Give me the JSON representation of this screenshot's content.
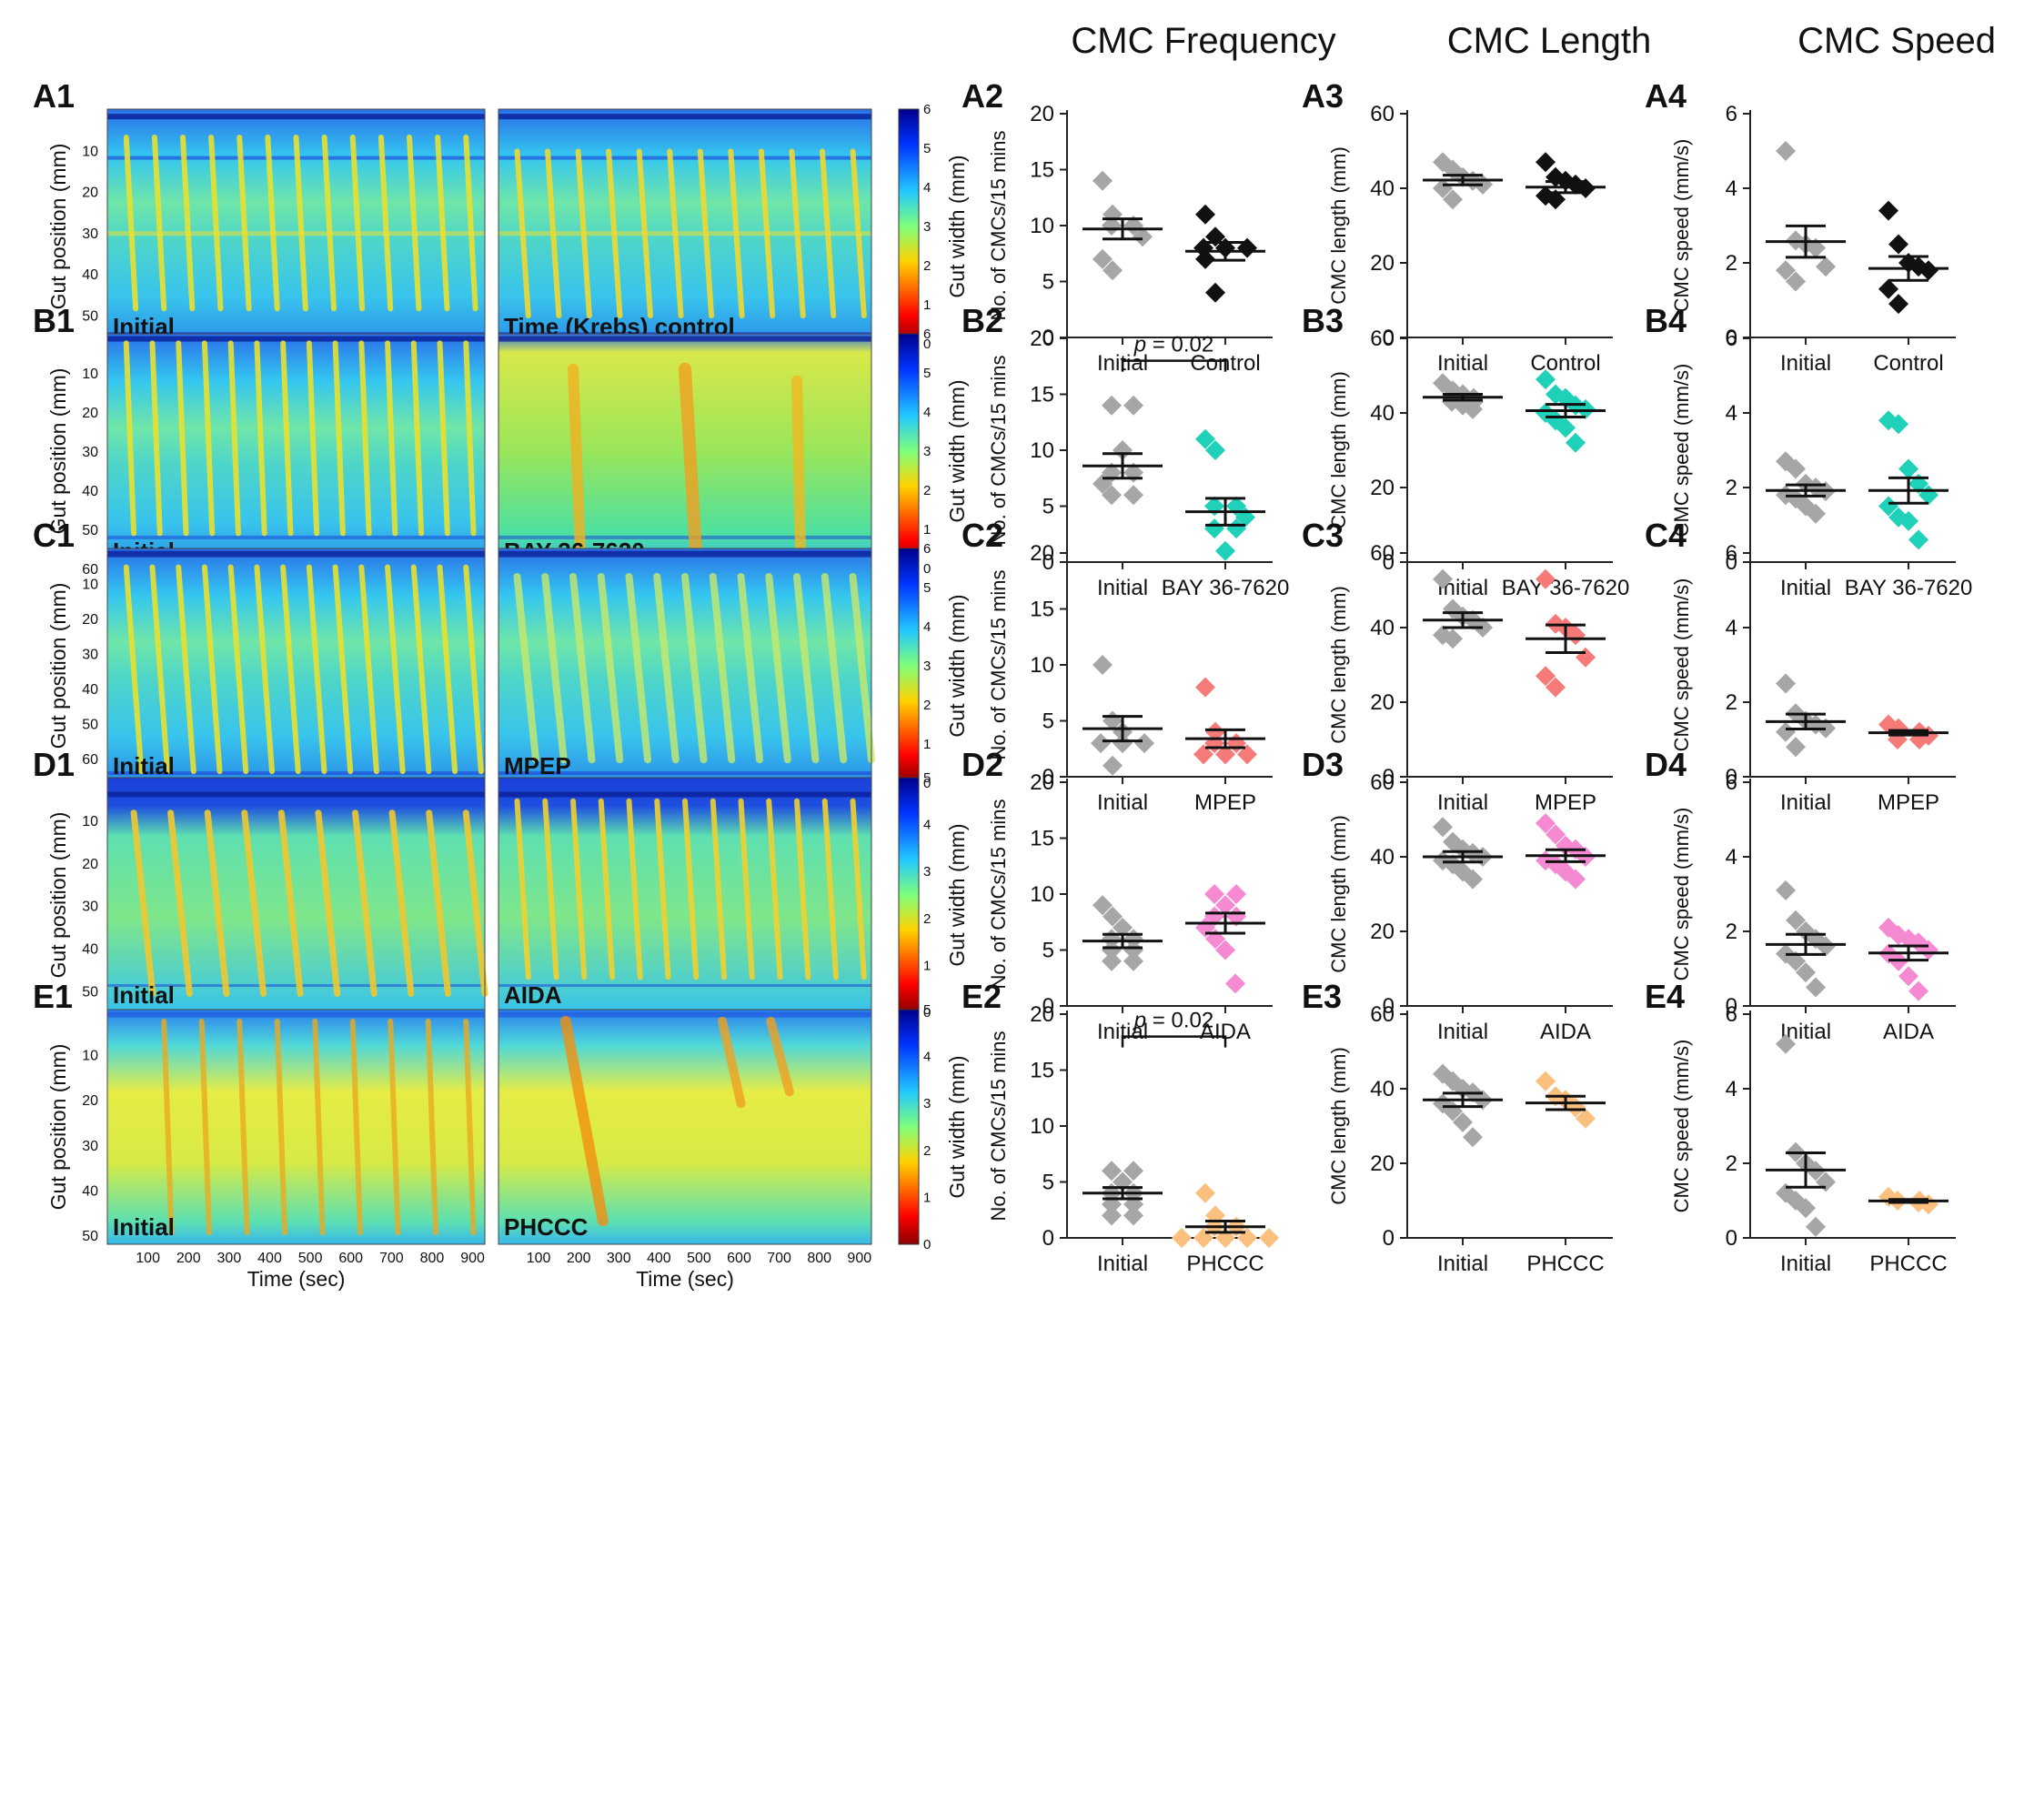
{
  "colors": {
    "initial": "#a6a6a6",
    "control": "#111111",
    "bay": "#1fd1b8",
    "mpep": "#f57a78",
    "aida": "#f589d2",
    "phccc": "#fbbf7e",
    "axis": "#222222",
    "text": "#111111"
  },
  "column_headers": [
    "CMC Frequency",
    "CMC Length",
    "CMC Speed"
  ],
  "colorbar_label": "Gut width (mm)",
  "map_xlabel": "Time (sec)",
  "map_ylabel": "Gut position (mm)",
  "rows": [
    {
      "id": "A",
      "panel_labels": [
        "A1",
        "A2",
        "A3",
        "A4"
      ],
      "map_left_label": "Initial",
      "map_right_label": "Time (Krebs) control",
      "time_ticks": [
        "100",
        "200",
        "300",
        "400",
        "500",
        "600",
        "700",
        "800",
        "900"
      ],
      "position_ticks": [
        "10",
        "20",
        "30",
        "40",
        "50"
      ],
      "position_max": 57,
      "colorbar_ticks": [
        "0",
        "1",
        "2",
        "3",
        "4",
        "5",
        "6"
      ]
    },
    {
      "id": "B",
      "panel_labels": [
        "B1",
        "B2",
        "B3",
        "B4"
      ],
      "map_left_label": "Initial",
      "map_right_label": "BAY 36-7620",
      "time_ticks": [
        "100",
        "200",
        "300",
        "400",
        "500",
        "600",
        "700",
        "800",
        "900"
      ],
      "position_ticks": [
        "10",
        "20",
        "30",
        "40",
        "50",
        "60"
      ],
      "position_max": 60,
      "colorbar_ticks": [
        "0",
        "1",
        "2",
        "3",
        "4",
        "5",
        "6"
      ]
    },
    {
      "id": "C",
      "panel_labels": [
        "C1",
        "C2",
        "C3",
        "C4"
      ],
      "map_left_label": "Initial",
      "map_right_label": "MPEP",
      "time_ticks": [
        "100",
        "200",
        "300",
        "400",
        "500",
        "600",
        "700",
        "800",
        "900"
      ],
      "position_ticks": [
        "10",
        "20",
        "30",
        "40",
        "50",
        "60"
      ],
      "position_max": 67,
      "colorbar_ticks": [
        "0",
        "1",
        "2",
        "3",
        "4",
        "5",
        "6"
      ]
    },
    {
      "id": "D",
      "panel_labels": [
        "D1",
        "D2",
        "D3",
        "D4"
      ],
      "map_left_label": "Initial",
      "map_right_label": "AIDA",
      "time_ticks": [
        "100",
        "200",
        "300",
        "400",
        "500",
        "600",
        "700",
        "800",
        "900"
      ],
      "position_ticks": [
        "10",
        "20",
        "30",
        "40",
        "50"
      ],
      "position_max": 55,
      "colorbar_ticks": [
        "0",
        "1",
        "2",
        "3",
        "4",
        "5"
      ]
    },
    {
      "id": "E",
      "panel_labels": [
        "E1",
        "E2",
        "E3",
        "E4"
      ],
      "map_left_label": "Initial",
      "map_right_label": "PHCCC",
      "time_ticks": [
        "100",
        "200",
        "300",
        "400",
        "500",
        "600",
        "700",
        "800",
        "900"
      ],
      "position_ticks": [
        "10",
        "20",
        "30",
        "40",
        "50"
      ],
      "position_max": 52,
      "colorbar_ticks": [
        "0",
        "1",
        "2",
        "3",
        "4",
        "5"
      ]
    }
  ],
  "chart_data": [
    {
      "id": "A2",
      "type": "scatter",
      "ylabel": "No. of CMCs/15 mins",
      "ylim": [
        0,
        20
      ],
      "yticks": [
        0,
        5,
        10,
        15,
        20
      ],
      "categories": [
        "Initial",
        "Control"
      ],
      "colors": [
        "initial",
        "control"
      ],
      "series": [
        {
          "name": "Initial",
          "values": [
            14,
            11,
            10,
            10,
            9,
            7,
            6
          ],
          "mean": 9.7,
          "sem": 0.9
        },
        {
          "name": "Control",
          "values": [
            11,
            9,
            8,
            8,
            8,
            7,
            4
          ],
          "mean": 7.7,
          "sem": 0.8
        }
      ]
    },
    {
      "id": "A3",
      "type": "scatter",
      "ylabel": "CMC length (mm)",
      "ylim": [
        0,
        60
      ],
      "yticks": [
        0,
        20,
        40,
        60
      ],
      "categories": [
        "Initial",
        "Control"
      ],
      "colors": [
        "initial",
        "control"
      ],
      "series": [
        {
          "name": "Initial",
          "values": [
            47,
            45,
            43,
            42,
            41,
            40,
            37
          ],
          "mean": 42.2,
          "sem": 1.3
        },
        {
          "name": "Control",
          "values": [
            47,
            43,
            42,
            41,
            40,
            38,
            37
          ],
          "mean": 40.3,
          "sem": 1.5
        }
      ]
    },
    {
      "id": "A4",
      "type": "scatter",
      "ylabel": "CMC speed (mm/s)",
      "ylim": [
        0,
        6
      ],
      "yticks": [
        0,
        2,
        4,
        6
      ],
      "categories": [
        "Initial",
        "Control"
      ],
      "colors": [
        "initial",
        "control"
      ],
      "series": [
        {
          "name": "Initial",
          "values": [
            5.0,
            2.6,
            2.5,
            2.4,
            1.9,
            1.8,
            1.5
          ],
          "mean": 2.57,
          "sem": 0.42
        },
        {
          "name": "Control",
          "values": [
            3.4,
            2.5,
            2.0,
            1.9,
            1.8,
            1.3,
            0.9
          ],
          "mean": 1.85,
          "sem": 0.32
        }
      ]
    },
    {
      "id": "B2",
      "type": "scatter",
      "ylabel": "No. of CMCs/15 mins",
      "ylim": [
        0,
        20
      ],
      "yticks": [
        0,
        5,
        10,
        15,
        20
      ],
      "categories": [
        "Initial",
        "BAY 36-7620"
      ],
      "colors": [
        "initial",
        "bay"
      ],
      "significance": "= 0.02",
      "significance_prefix": "p",
      "series": [
        {
          "name": "Initial",
          "values": [
            14,
            14,
            10,
            8,
            8,
            7,
            6,
            6
          ],
          "mean": 8.6,
          "sem": 1.1
        },
        {
          "name": "BAY 36-7620",
          "values": [
            11,
            10,
            5,
            5,
            4,
            3,
            3,
            1
          ],
          "mean": 4.5,
          "sem": 1.2
        }
      ]
    },
    {
      "id": "B3",
      "type": "scatter",
      "ylabel": "CMC length (mm)",
      "ylim": [
        0,
        60
      ],
      "yticks": [
        0,
        20,
        40,
        60
      ],
      "categories": [
        "Initial",
        "BAY 36-7620"
      ],
      "colors": [
        "initial",
        "bay"
      ],
      "series": [
        {
          "name": "Initial",
          "values": [
            48,
            46,
            45,
            44,
            44,
            43,
            43,
            42,
            41
          ],
          "mean": 44.2,
          "sem": 0.8
        },
        {
          "name": "BAY 36-7620",
          "values": [
            49,
            45,
            44,
            42,
            41,
            40,
            38,
            36,
            32
          ],
          "mean": 40.6,
          "sem": 1.7
        }
      ]
    },
    {
      "id": "B4",
      "type": "scatter",
      "ylabel": "CMC speed (mm/s)",
      "ylim": [
        0,
        6
      ],
      "yticks": [
        0,
        2,
        4,
        6
      ],
      "categories": [
        "Initial",
        "BAY 36-7620"
      ],
      "colors": [
        "initial",
        "bay"
      ],
      "series": [
        {
          "name": "Initial",
          "values": [
            2.7,
            2.5,
            2.1,
            2.0,
            1.9,
            1.8,
            1.7,
            1.5,
            1.3
          ],
          "mean": 1.92,
          "sem": 0.15
        },
        {
          "name": "BAY 36-7620",
          "values": [
            3.8,
            3.7,
            2.5,
            2.1,
            1.8,
            1.5,
            1.2,
            1.1,
            0.6
          ],
          "mean": 1.92,
          "sem": 0.34
        }
      ]
    },
    {
      "id": "C2",
      "type": "scatter",
      "ylabel": "No. of CMCs/15 mins",
      "ylim": [
        0,
        20
      ],
      "yticks": [
        0,
        5,
        10,
        15,
        20
      ],
      "categories": [
        "Initial",
        "MPEP"
      ],
      "colors": [
        "initial",
        "mpep"
      ],
      "series": [
        {
          "name": "Initial",
          "values": [
            10,
            5,
            4,
            3,
            3,
            3,
            1
          ],
          "mean": 4.3,
          "sem": 1.1
        },
        {
          "name": "MPEP",
          "values": [
            8,
            4,
            3,
            3,
            2,
            2,
            2
          ],
          "mean": 3.4,
          "sem": 0.8
        }
      ]
    },
    {
      "id": "C3",
      "type": "scatter",
      "ylabel": "CMC length (mm)",
      "ylim": [
        0,
        60
      ],
      "yticks": [
        0,
        20,
        40,
        60
      ],
      "categories": [
        "Initial",
        "MPEP"
      ],
      "colors": [
        "initial",
        "mpep"
      ],
      "series": [
        {
          "name": "Initial",
          "values": [
            53,
            45,
            43,
            42,
            40,
            38,
            37
          ],
          "mean": 42,
          "sem": 2.0
        },
        {
          "name": "MPEP",
          "values": [
            53,
            41,
            40,
            38,
            32,
            27,
            24
          ],
          "mean": 37,
          "sem": 3.7
        }
      ]
    },
    {
      "id": "C4",
      "type": "scatter",
      "ylabel": "CMC speed (mm/s)",
      "ylim": [
        0,
        6
      ],
      "yticks": [
        0,
        2,
        4,
        6
      ],
      "categories": [
        "Initial",
        "MPEP"
      ],
      "colors": [
        "initial",
        "mpep"
      ],
      "series": [
        {
          "name": "Initial",
          "values": [
            2.5,
            1.7,
            1.5,
            1.4,
            1.3,
            1.2,
            0.8
          ],
          "mean": 1.48,
          "sem": 0.2
        },
        {
          "name": "MPEP",
          "values": [
            1.4,
            1.3,
            1.2,
            1.2,
            1.1,
            1.0,
            1.0
          ],
          "mean": 1.18,
          "sem": 0.06
        }
      ]
    },
    {
      "id": "D2",
      "type": "scatter",
      "ylabel": "No. of CMCs/15 mins",
      "ylim": [
        0,
        20
      ],
      "yticks": [
        0,
        5,
        10,
        15,
        20
      ],
      "categories": [
        "Initial",
        "AIDA"
      ],
      "colors": [
        "initial",
        "aida"
      ],
      "series": [
        {
          "name": "Initial",
          "values": [
            9,
            8,
            7,
            6,
            6,
            5,
            5,
            4,
            4
          ],
          "mean": 5.8,
          "sem": 0.6
        },
        {
          "name": "AIDA",
          "values": [
            10,
            10,
            9,
            8,
            8,
            7,
            6,
            5,
            2
          ],
          "mean": 7.4,
          "sem": 0.9
        }
      ]
    },
    {
      "id": "D3",
      "type": "scatter",
      "ylabel": "CMC length (mm)",
      "ylim": [
        0,
        60
      ],
      "yticks": [
        0,
        20,
        40,
        60
      ],
      "categories": [
        "Initial",
        "AIDA"
      ],
      "colors": [
        "initial",
        "aida"
      ],
      "series": [
        {
          "name": "Initial",
          "values": [
            48,
            44,
            42,
            41,
            40,
            39,
            38,
            36,
            34
          ],
          "mean": 40,
          "sem": 1.4
        },
        {
          "name": "AIDA",
          "values": [
            49,
            46,
            43,
            42,
            40,
            39,
            38,
            36,
            34
          ],
          "mean": 40.3,
          "sem": 1.6
        }
      ]
    },
    {
      "id": "D4",
      "type": "scatter",
      "ylabel": "CMC speed (mm/s)",
      "ylim": [
        0,
        6
      ],
      "yticks": [
        0,
        2,
        4,
        6
      ],
      "categories": [
        "Initial",
        "AIDA"
      ],
      "colors": [
        "initial",
        "aida"
      ],
      "series": [
        {
          "name": "Initial",
          "values": [
            3.1,
            2.3,
            2.0,
            1.8,
            1.6,
            1.4,
            1.2,
            0.9,
            0.5
          ],
          "mean": 1.65,
          "sem": 0.27
        },
        {
          "name": "AIDA",
          "values": [
            2.1,
            1.9,
            1.8,
            1.7,
            1.5,
            1.4,
            1.2,
            0.8,
            0.4
          ],
          "mean": 1.42,
          "sem": 0.19
        }
      ]
    },
    {
      "id": "E2",
      "type": "scatter",
      "ylabel": "No. of CMCs/15 mins",
      "ylim": [
        0,
        20
      ],
      "yticks": [
        0,
        5,
        10,
        15,
        20
      ],
      "categories": [
        "Initial",
        "PHCCC"
      ],
      "colors": [
        "initial",
        "phccc"
      ],
      "significance": "= 0.02",
      "significance_prefix": "p",
      "series": [
        {
          "name": "Initial",
          "values": [
            6,
            6,
            5,
            4,
            4,
            3,
            3,
            2,
            2
          ],
          "mean": 4.0,
          "sem": 0.5
        },
        {
          "name": "PHCCC",
          "values": [
            4,
            2,
            1,
            1,
            0,
            0,
            0,
            0,
            0
          ],
          "mean": 1.0,
          "sem": 0.5
        }
      ]
    },
    {
      "id": "E3",
      "type": "scatter",
      "ylabel": "CMC length (mm)",
      "ylim": [
        0,
        60
      ],
      "yticks": [
        0,
        20,
        40,
        60
      ],
      "categories": [
        "Initial",
        "PHCCC"
      ],
      "colors": [
        "initial",
        "phccc"
      ],
      "series": [
        {
          "name": "Initial",
          "values": [
            44,
            42,
            40,
            39,
            37,
            36,
            34,
            31,
            27
          ],
          "mean": 37,
          "sem": 1.8
        },
        {
          "name": "PHCCC",
          "values": [
            42,
            38,
            37,
            35,
            32
          ],
          "mean": 36.2,
          "sem": 1.8
        }
      ]
    },
    {
      "id": "E4",
      "type": "scatter",
      "ylabel": "CMC speed (mm/s)",
      "ylim": [
        0,
        6
      ],
      "yticks": [
        0,
        2,
        4,
        6
      ],
      "categories": [
        "Initial",
        "PHCCC"
      ],
      "colors": [
        "initial",
        "phccc"
      ],
      "series": [
        {
          "name": "Initial",
          "values": [
            5.2,
            2.3,
            2.0,
            1.8,
            1.5,
            1.2,
            1.0,
            0.8,
            0.3
          ],
          "mean": 1.82,
          "sem": 0.46
        },
        {
          "name": "PHCCC",
          "values": [
            1.1,
            1.0,
            1.0,
            0.95,
            0.9
          ],
          "mean": 0.99,
          "sem": 0.04
        }
      ]
    }
  ]
}
